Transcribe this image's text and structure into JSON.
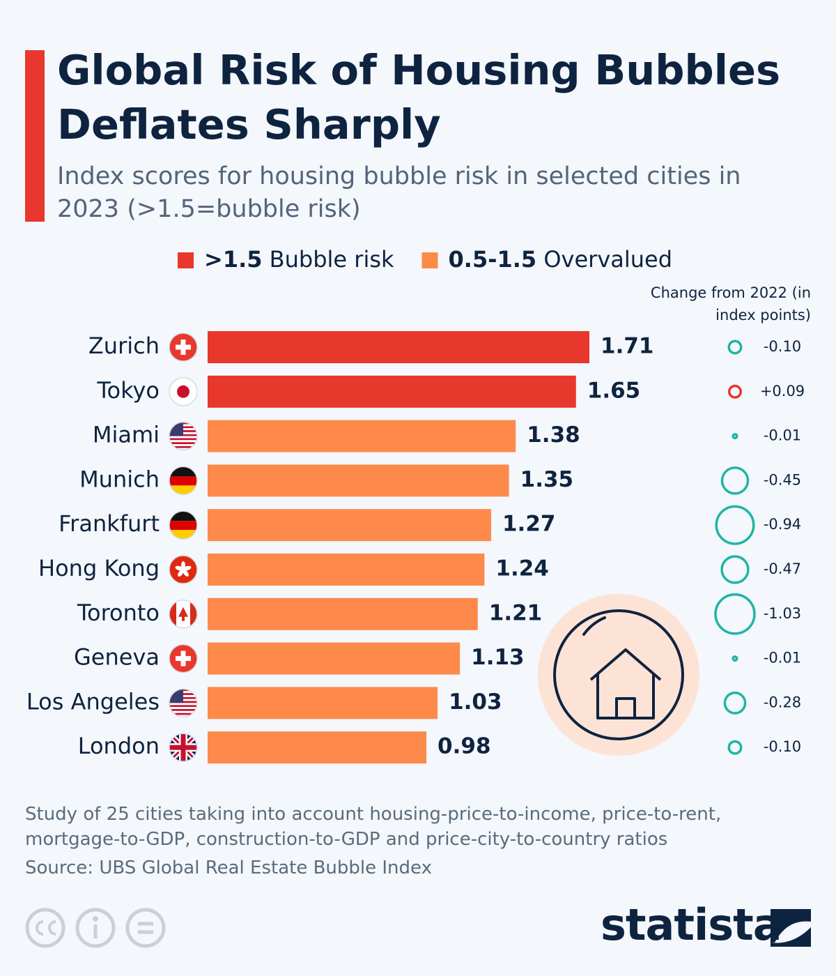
{
  "chart_data": {
    "type": "bar",
    "orientation": "horizontal",
    "title": "Global Risk of Housing Bubbles Deflates Sharply",
    "subtitle": "Index scores for housing bubble risk in selected cities in 2023 (>1.5=bubble risk)",
    "legend": [
      {
        "range": ">1.5",
        "label": "Bubble risk",
        "color": "#e8372c"
      },
      {
        "range": "0.5-1.5",
        "label": "Overvalued",
        "color": "#fd8a4b"
      }
    ],
    "categories": [
      "Zurich",
      "Tokyo",
      "Miami",
      "Munich",
      "Frankfurt",
      "Hong Kong",
      "Toronto",
      "Geneva",
      "Los Angeles",
      "London"
    ],
    "values": [
      1.71,
      1.65,
      1.38,
      1.35,
      1.27,
      1.24,
      1.21,
      1.13,
      1.03,
      0.98
    ],
    "colors": [
      "#e8372c",
      "#e8372c",
      "#fd8a4b",
      "#fd8a4b",
      "#fd8a4b",
      "#fd8a4b",
      "#fd8a4b",
      "#fd8a4b",
      "#fd8a4b",
      "#fd8a4b"
    ],
    "change": {
      "title": "Change from 2022 (in index points)",
      "values": [
        -0.1,
        0.09,
        -0.01,
        -0.45,
        -0.94,
        -0.47,
        -1.03,
        -0.01,
        -0.28,
        -0.1
      ],
      "labels": [
        "-0.10",
        "+0.09",
        "-0.01",
        "-0.45",
        "-0.94",
        "-0.47",
        "-1.03",
        "-0.01",
        "-0.28",
        "-0.10"
      ],
      "colors": [
        "#1fb5a5",
        "#e8372c",
        "#1fb5a5",
        "#1fb5a5",
        "#1fb5a5",
        "#1fb5a5",
        "#1fb5a5",
        "#1fb5a5",
        "#1fb5a5",
        "#1fb5a5"
      ]
    },
    "note": "Study of 25 cities taking into account housing-price-to-income, price-to-rent, mortgage-to-GDP, construction-to-GDP and price-city-to-country ratios",
    "source": "Source: UBS Global Real Estate Bubble Index",
    "brand": "statista"
  }
}
